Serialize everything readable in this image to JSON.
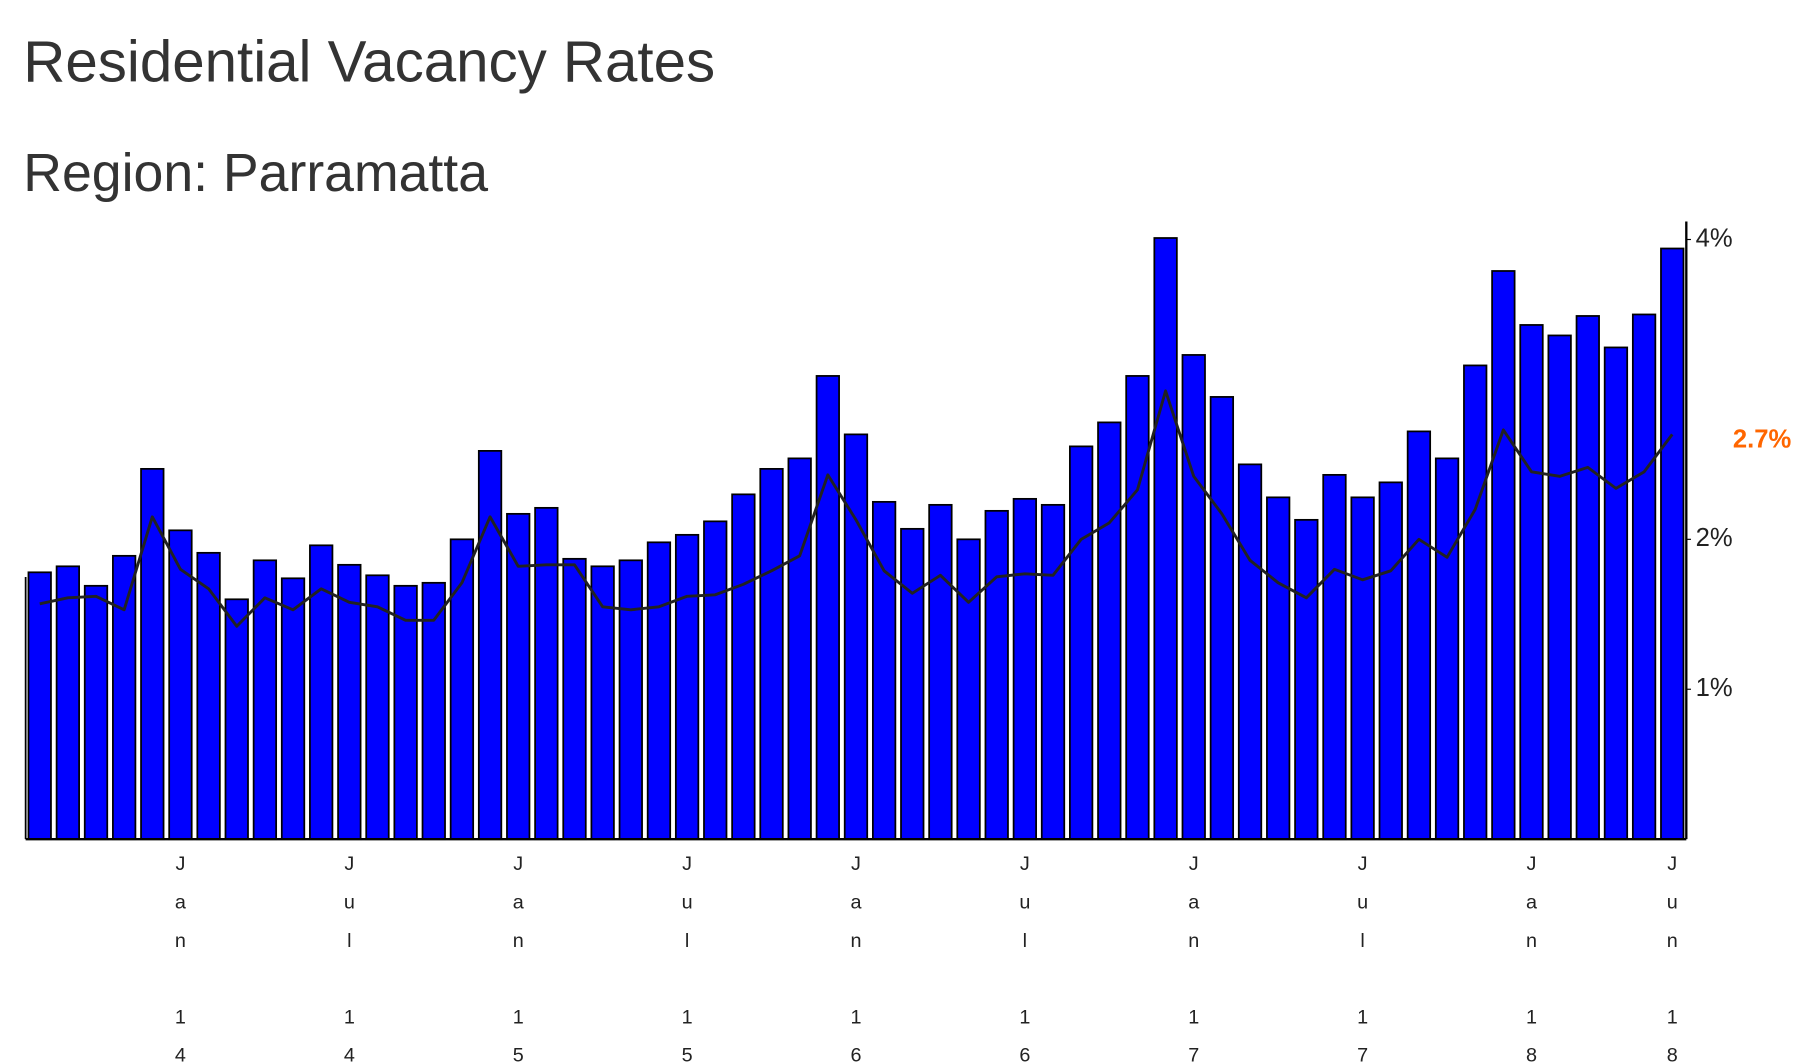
{
  "chart_data": {
    "type": "bar",
    "title": "Residential Vacancy Rates",
    "subtitle": "Region: Parramatta",
    "annotation": "2.7%",
    "annotation_color": "#ff6600",
    "axis_side": "right",
    "grid": false,
    "categories": [
      null,
      null,
      null,
      null,
      null,
      "Jan 14",
      null,
      null,
      null,
      null,
      null,
      "Jul 14",
      null,
      null,
      null,
      null,
      null,
      "Jan 15",
      null,
      null,
      null,
      null,
      null,
      "Jul 15",
      null,
      null,
      null,
      null,
      null,
      "Jan 16",
      null,
      null,
      null,
      null,
      null,
      "Jul 16",
      null,
      null,
      null,
      null,
      null,
      "Jan 17",
      null,
      null,
      null,
      null,
      null,
      "Jul 17",
      null,
      null,
      null,
      null,
      null,
      "Jan 18",
      null,
      null,
      null,
      null,
      "Jun 18"
    ],
    "series": [
      {
        "type": "bar",
        "color": "#0000ff",
        "values": [
          1.78,
          1.82,
          1.69,
          1.89,
          2.47,
          2.06,
          1.91,
          1.6,
          1.86,
          1.74,
          1.96,
          1.83,
          1.76,
          1.69,
          1.71,
          2.0,
          2.59,
          2.17,
          2.21,
          1.87,
          1.82,
          1.86,
          1.98,
          2.03,
          2.12,
          2.3,
          2.47,
          2.54,
          3.09,
          2.7,
          2.25,
          2.07,
          2.23,
          2.0,
          2.19,
          2.27,
          2.23,
          2.62,
          2.78,
          3.09,
          4.01,
          3.23,
          2.95,
          2.5,
          2.28,
          2.13,
          2.43,
          2.28,
          2.38,
          2.72,
          2.54,
          3.16,
          3.79,
          3.43,
          3.36,
          3.49,
          3.28,
          3.5,
          3.94
        ]
      },
      {
        "type": "line",
        "color": "#222222",
        "values": [
          1.57,
          1.61,
          1.62,
          1.53,
          2.15,
          1.8,
          1.67,
          1.42,
          1.61,
          1.53,
          1.67,
          1.58,
          1.55,
          1.46,
          1.46,
          1.71,
          2.15,
          1.82,
          1.83,
          1.83,
          1.55,
          1.53,
          1.55,
          1.62,
          1.63,
          1.7,
          1.79,
          1.89,
          2.43,
          2.13,
          1.79,
          1.64,
          1.76,
          1.58,
          1.75,
          1.77,
          1.76,
          2.0,
          2.11,
          2.33,
          2.99,
          2.42,
          2.17,
          1.86,
          1.71,
          1.61,
          1.8,
          1.73,
          1.79,
          2.0,
          1.88,
          2.2,
          2.73,
          2.45,
          2.42,
          2.48,
          2.34,
          2.45,
          2.7
        ]
      }
    ],
    "ylim": [
      0,
      4.12
    ],
    "yticks": [
      {
        "value": 1,
        "label": "1%"
      },
      {
        "value": 2,
        "label": "2%"
      },
      {
        "value": 4,
        "label": "4%"
      }
    ]
  }
}
